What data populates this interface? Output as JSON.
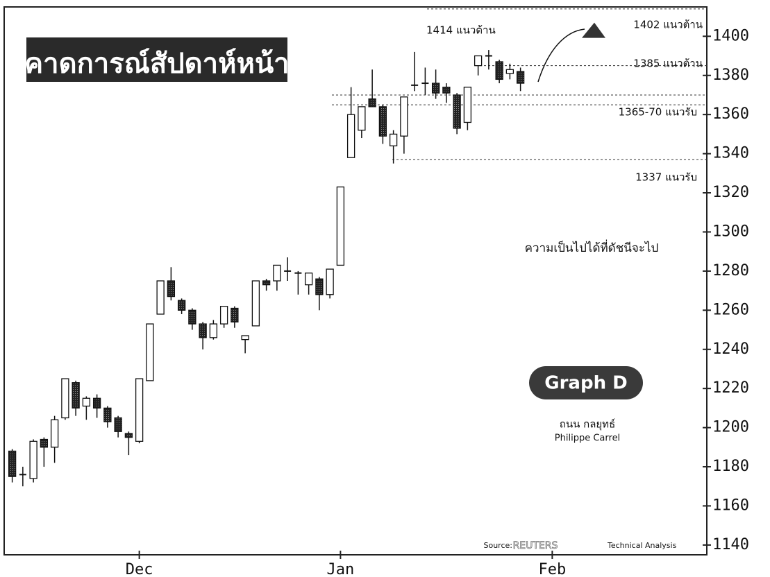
{
  "chart_data": {
    "type": "candlestick",
    "title": "คาดการณ์สัปดาห์หน้า",
    "categories": [
      null,
      null,
      null,
      null,
      null,
      null,
      null,
      null,
      null,
      null,
      null,
      null,
      "Dec",
      null,
      null,
      null,
      null,
      null,
      null,
      null,
      null,
      null,
      null,
      null,
      null,
      null,
      null,
      null,
      null,
      null,
      null,
      "Jan",
      null,
      null,
      null,
      null,
      null,
      null,
      null,
      null,
      null,
      null,
      null,
      null,
      null,
      null,
      null,
      null,
      null,
      null,
      null,
      "Feb"
    ],
    "open": [
      1188,
      1176,
      1174,
      1194,
      1190,
      1205,
      1223,
      1211,
      1215,
      1210,
      1205,
      1197,
      1193,
      1224,
      1258,
      1275,
      1265,
      1260,
      1253,
      1246,
      1253,
      1261,
      1245,
      1252,
      1275,
      1275,
      1280,
      1279,
      1273,
      1276,
      1268,
      1283,
      1338,
      1352,
      1368,
      1364,
      1344,
      1349,
      1375,
      1376,
      1376,
      1374,
      1370,
      1356,
      1385,
      1390,
      1387,
      1381,
      1382,
      null,
      null,
      null
    ],
    "high": [
      1189,
      1180,
      1194,
      1195,
      1206,
      1225,
      1224,
      1216,
      1217,
      1211,
      1206,
      1198,
      1225,
      1253,
      1275,
      1282,
      1266,
      1261,
      1254,
      1255,
      1262,
      1262,
      1247,
      1275,
      1276,
      1283,
      1287,
      1280,
      1279,
      1277,
      1281,
      1323,
      1374,
      1364,
      1383,
      1365,
      1352,
      1369,
      1392,
      1384,
      1383,
      1376,
      1371,
      1374,
      1390,
      1393,
      1388,
      1386,
      1384,
      null,
      null,
      null
    ],
    "low": [
      1172,
      1170,
      1172,
      1180,
      1182,
      1204,
      1206,
      1204,
      1205,
      1200,
      1195,
      1186,
      1192,
      1224,
      1258,
      1265,
      1258,
      1250,
      1240,
      1245,
      1251,
      1251,
      1238,
      1252,
      1270,
      1270,
      1275,
      1268,
      1268,
      1260,
      1266,
      1283,
      1338,
      1348,
      1364,
      1345,
      1335,
      1340,
      1372,
      1370,
      1368,
      1366,
      1350,
      1352,
      1380,
      1383,
      1376,
      1378,
      1372,
      null,
      null,
      null
    ],
    "close": [
      1175,
      1176,
      1193,
      1190,
      1204,
      1225,
      1210,
      1215,
      1210,
      1203,
      1198,
      1195,
      1225,
      1253,
      1275,
      1267,
      1260,
      1253,
      1246,
      1253,
      1262,
      1254,
      1247,
      1275,
      1273,
      1283,
      1280,
      1279,
      1279,
      1268,
      1281,
      1323,
      1360,
      1364,
      1364,
      1349,
      1350,
      1369,
      1375,
      1376,
      1371,
      1371,
      1353,
      1374,
      1390,
      1390,
      1378,
      1383,
      1376,
      null,
      null,
      null
    ],
    "ylim": [
      1135,
      1415
    ],
    "yticks": [
      1140,
      1160,
      1180,
      1200,
      1220,
      1240,
      1260,
      1280,
      1300,
      1320,
      1340,
      1360,
      1380,
      1400
    ],
    "levels": [
      {
        "label": "1414 แนวต้าน",
        "values": [
          1414
        ]
      },
      {
        "label": "1385 แนวต้าน",
        "values": [
          1385
        ]
      },
      {
        "label": "1365-70 แนวรับ",
        "values": [
          1365,
          1370
        ]
      },
      {
        "label": "1337 แนวรับ",
        "values": [
          1337
        ]
      }
    ],
    "target": {
      "label": "1402 แนวต้าน",
      "value": 1402
    },
    "annotation": "ความเป็นไปได้ที่ดัชนีจะไป",
    "badge": "Graph D",
    "author": "ถนน กลยุทธ์",
    "author_latin": "Philippe Carrel",
    "source": [
      "Source:",
      "REUTERS",
      "Technical Analysis"
    ]
  }
}
